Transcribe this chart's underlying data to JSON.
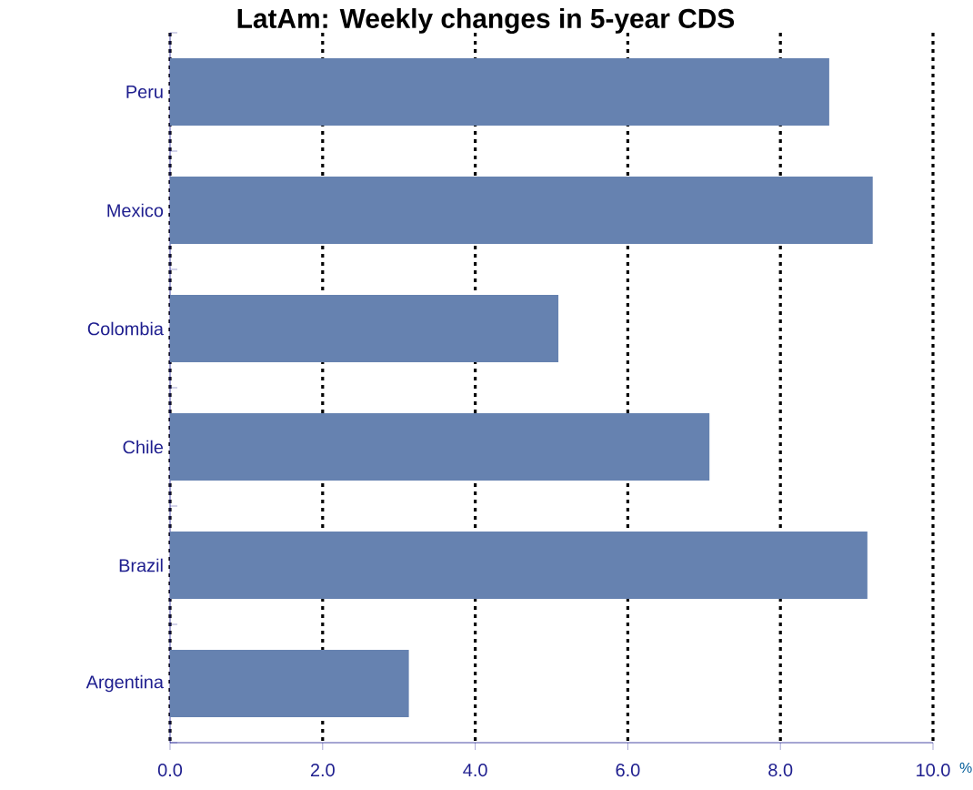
{
  "chart_data": {
    "type": "bar",
    "orientation": "horizontal",
    "title": "LatAm: Weekly changes in 5-year CDS",
    "xlabel": "%",
    "categories": [
      "Peru",
      "Mexico",
      "Colombia",
      "Chile",
      "Brazil",
      "Argentina"
    ],
    "values": [
      8.64,
      9.21,
      5.09,
      7.07,
      9.14,
      3.13
    ],
    "color": "#6682b0",
    "xlim": [
      0,
      10
    ],
    "xticks": [
      {
        "value": 0,
        "label": "0.0"
      },
      {
        "value": 2,
        "label": "2.0"
      },
      {
        "value": 4,
        "label": "4.0"
      },
      {
        "value": 6,
        "label": "6.0"
      },
      {
        "value": 8,
        "label": "8.0"
      },
      {
        "value": 10,
        "label": "10.0"
      }
    ],
    "grid": "x"
  }
}
